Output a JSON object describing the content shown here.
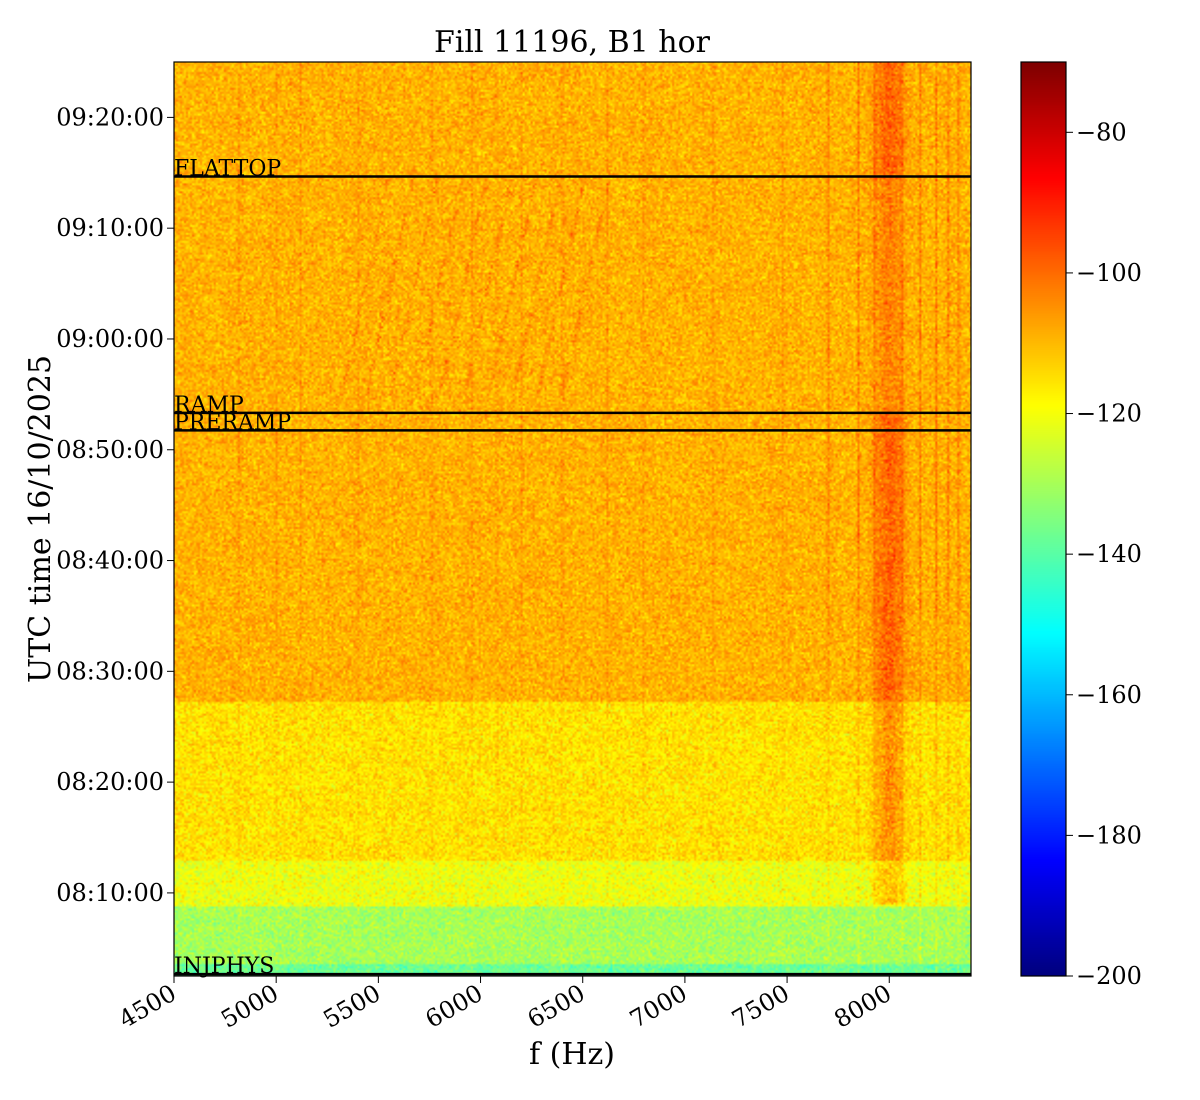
{
  "chart_data": {
    "type": "heatmap",
    "title": "Fill 11196, B1 hor",
    "xlabel": "f (Hz)",
    "ylabel": "UTC time 16/10/2025",
    "xlim": [
      4500,
      8400
    ],
    "ylim": [
      "08:02:30",
      "09:25:00"
    ],
    "x_ticks": [
      {
        "value": 4500,
        "label": "4500"
      },
      {
        "value": 5000,
        "label": "5000"
      },
      {
        "value": 5500,
        "label": "5500"
      },
      {
        "value": 6000,
        "label": "6000"
      },
      {
        "value": 6500,
        "label": "6500"
      },
      {
        "value": 7000,
        "label": "7000"
      },
      {
        "value": 7500,
        "label": "7500"
      },
      {
        "value": 8000,
        "label": "8000"
      }
    ],
    "y_ticks": [
      {
        "value": "08:10:00",
        "label": "08:10:00"
      },
      {
        "value": "08:20:00",
        "label": "08:20:00"
      },
      {
        "value": "08:30:00",
        "label": "08:30:00"
      },
      {
        "value": "08:40:00",
        "label": "08:40:00"
      },
      {
        "value": "08:50:00",
        "label": "08:50:00"
      },
      {
        "value": "09:00:00",
        "label": "09:00:00"
      },
      {
        "value": "09:10:00",
        "label": "09:10:00"
      },
      {
        "value": "09:20:00",
        "label": "09:20:00"
      }
    ],
    "colorbar": {
      "colormap": "jet",
      "range": [
        -200,
        -70
      ],
      "ticks": [
        {
          "value": -80,
          "label": "−80"
        },
        {
          "value": -100,
          "label": "−100"
        },
        {
          "value": -120,
          "label": "−120"
        },
        {
          "value": -140,
          "label": "−140"
        },
        {
          "value": -160,
          "label": "−160"
        },
        {
          "value": -180,
          "label": "−180"
        },
        {
          "value": -200,
          "label": "−200"
        }
      ]
    },
    "events": [
      {
        "label": "INJPHYS",
        "time": "08:02:40"
      },
      {
        "label": "PRERAMP",
        "time": "08:51:45"
      },
      {
        "label": "RAMP",
        "time": "08:53:20"
      },
      {
        "label": "FLATTOP",
        "time": "09:14:40"
      }
    ],
    "line_color": "#000000"
  }
}
